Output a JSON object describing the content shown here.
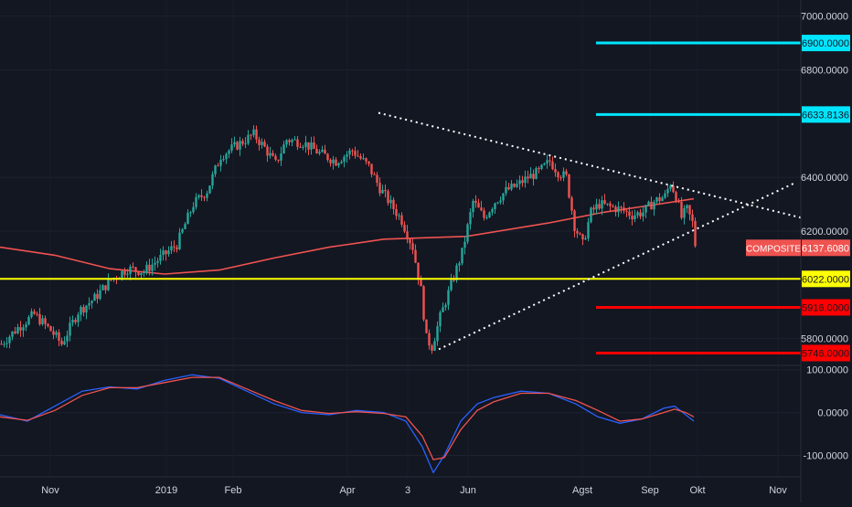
{
  "chart_data": [
    {
      "type": "candlestick",
      "panel": "price",
      "symbol_label": "COMPOSITE",
      "last_price": "6137.6080",
      "y_ticks": [
        "7000.0000",
        "6800.0000",
        "6400.0000",
        "6200.0000",
        "5800.0000"
      ],
      "ylim": [
        5700,
        7060
      ],
      "x_ticks": [
        "Nov",
        "2019",
        "Feb",
        "Apr",
        "3",
        "Jun",
        "Agst",
        "Sep",
        "Okt",
        "Nov"
      ],
      "price_path": [
        [
          0,
          5780
        ],
        [
          6,
          5840
        ],
        [
          12,
          5890
        ],
        [
          18,
          5830
        ],
        [
          22,
          5780
        ],
        [
          28,
          5900
        ],
        [
          34,
          5950
        ],
        [
          40,
          6020
        ],
        [
          46,
          6060
        ],
        [
          52,
          6050
        ],
        [
          58,
          6100
        ],
        [
          64,
          6150
        ],
        [
          70,
          6300
        ],
        [
          75,
          6350
        ],
        [
          80,
          6480
        ],
        [
          86,
          6520
        ],
        [
          92,
          6560
        ],
        [
          96,
          6510
        ],
        [
          100,
          6450
        ],
        [
          104,
          6540
        ],
        [
          110,
          6530
        ],
        [
          116,
          6490
        ],
        [
          122,
          6460
        ],
        [
          128,
          6500
        ],
        [
          134,
          6440
        ],
        [
          138,
          6360
        ],
        [
          142,
          6300
        ],
        [
          146,
          6240
        ],
        [
          150,
          6140
        ],
        [
          153,
          5980
        ],
        [
          155,
          5800
        ],
        [
          157,
          5770
        ],
        [
          160,
          5880
        ],
        [
          164,
          6000
        ],
        [
          168,
          6120
        ],
        [
          172,
          6310
        ],
        [
          176,
          6250
        ],
        [
          180,
          6310
        ],
        [
          184,
          6350
        ],
        [
          188,
          6370
        ],
        [
          192,
          6400
        ],
        [
          196,
          6420
        ],
        [
          200,
          6460
        ],
        [
          203,
          6420
        ],
        [
          206,
          6400
        ],
        [
          209,
          6220
        ],
        [
          212,
          6150
        ],
        [
          215,
          6270
        ],
        [
          218,
          6300
        ],
        [
          222,
          6290
        ],
        [
          226,
          6280
        ],
        [
          230,
          6260
        ],
        [
          234,
          6270
        ],
        [
          238,
          6310
        ],
        [
          242,
          6330
        ],
        [
          244,
          6380
        ],
        [
          246,
          6330
        ],
        [
          248,
          6250
        ],
        [
          250,
          6280
        ],
        [
          252,
          6230
        ],
        [
          253,
          6150
        ]
      ],
      "ma_path": [
        [
          0,
          6140
        ],
        [
          20,
          6110
        ],
        [
          40,
          6060
        ],
        [
          60,
          6040
        ],
        [
          80,
          6055
        ],
        [
          100,
          6100
        ],
        [
          120,
          6140
        ],
        [
          140,
          6170
        ],
        [
          170,
          6180
        ],
        [
          200,
          6230
        ],
        [
          220,
          6270
        ],
        [
          240,
          6300
        ],
        [
          253,
          6320
        ]
      ],
      "levels": [
        {
          "value": 6900,
          "label": "6900.0000",
          "color": "#00e5ff"
        },
        {
          "value": 6633.8136,
          "label": "6633.8136",
          "color": "#00e5ff"
        },
        {
          "value": 6022,
          "label": "6022.0000",
          "color": "#ffff00"
        },
        {
          "value": 5916,
          "label": "5916.0000",
          "color": "#ff0000"
        },
        {
          "value": 5746,
          "label": "5746.0000",
          "color": "#ff0000"
        }
      ],
      "trendlines": [
        {
          "from": [
            138,
            6640
          ],
          "to": [
            292,
            6250
          ],
          "style": "dotted"
        },
        {
          "from": [
            160,
            5760
          ],
          "to": [
            290,
            6380
          ],
          "style": "dotted"
        }
      ],
      "colors": {
        "up": "#26a69a",
        "down": "#ef5350",
        "ma": "#ef5350",
        "price_tag": "#ef5350"
      }
    },
    {
      "type": "line",
      "panel": "oscillator",
      "y_ticks": [
        "100.0000",
        "0.0000",
        "-100.0000"
      ],
      "ylim": [
        -150,
        110
      ],
      "series": [
        {
          "color": "#2962ff",
          "points": [
            [
              0,
              -5
            ],
            [
              10,
              -20
            ],
            [
              20,
              15
            ],
            [
              30,
              50
            ],
            [
              40,
              60
            ],
            [
              50,
              55
            ],
            [
              60,
              75
            ],
            [
              70,
              88
            ],
            [
              80,
              80
            ],
            [
              90,
              50
            ],
            [
              100,
              20
            ],
            [
              110,
              0
            ],
            [
              120,
              -5
            ],
            [
              130,
              5
            ],
            [
              140,
              0
            ],
            [
              148,
              -20
            ],
            [
              154,
              -80
            ],
            [
              158,
              -140
            ],
            [
              162,
              -100
            ],
            [
              168,
              -20
            ],
            [
              174,
              20
            ],
            [
              180,
              35
            ],
            [
              190,
              50
            ],
            [
              200,
              45
            ],
            [
              210,
              20
            ],
            [
              218,
              -10
            ],
            [
              226,
              -25
            ],
            [
              234,
              -15
            ],
            [
              242,
              10
            ],
            [
              246,
              15
            ],
            [
              250,
              -5
            ],
            [
              253,
              -20
            ]
          ]
        },
        {
          "color": "#ef5350",
          "points": [
            [
              0,
              -10
            ],
            [
              10,
              -18
            ],
            [
              20,
              5
            ],
            [
              30,
              40
            ],
            [
              40,
              58
            ],
            [
              50,
              58
            ],
            [
              60,
              70
            ],
            [
              70,
              82
            ],
            [
              80,
              82
            ],
            [
              90,
              55
            ],
            [
              100,
              28
            ],
            [
              110,
              5
            ],
            [
              120,
              -2
            ],
            [
              130,
              2
            ],
            [
              140,
              -2
            ],
            [
              148,
              -10
            ],
            [
              154,
              -55
            ],
            [
              158,
              -110
            ],
            [
              162,
              -105
            ],
            [
              168,
              -40
            ],
            [
              174,
              5
            ],
            [
              180,
              25
            ],
            [
              190,
              45
            ],
            [
              200,
              45
            ],
            [
              210,
              28
            ],
            [
              218,
              5
            ],
            [
              226,
              -20
            ],
            [
              234,
              -15
            ],
            [
              242,
              0
            ],
            [
              246,
              8
            ],
            [
              250,
              0
            ],
            [
              253,
              -10
            ]
          ]
        }
      ]
    }
  ]
}
